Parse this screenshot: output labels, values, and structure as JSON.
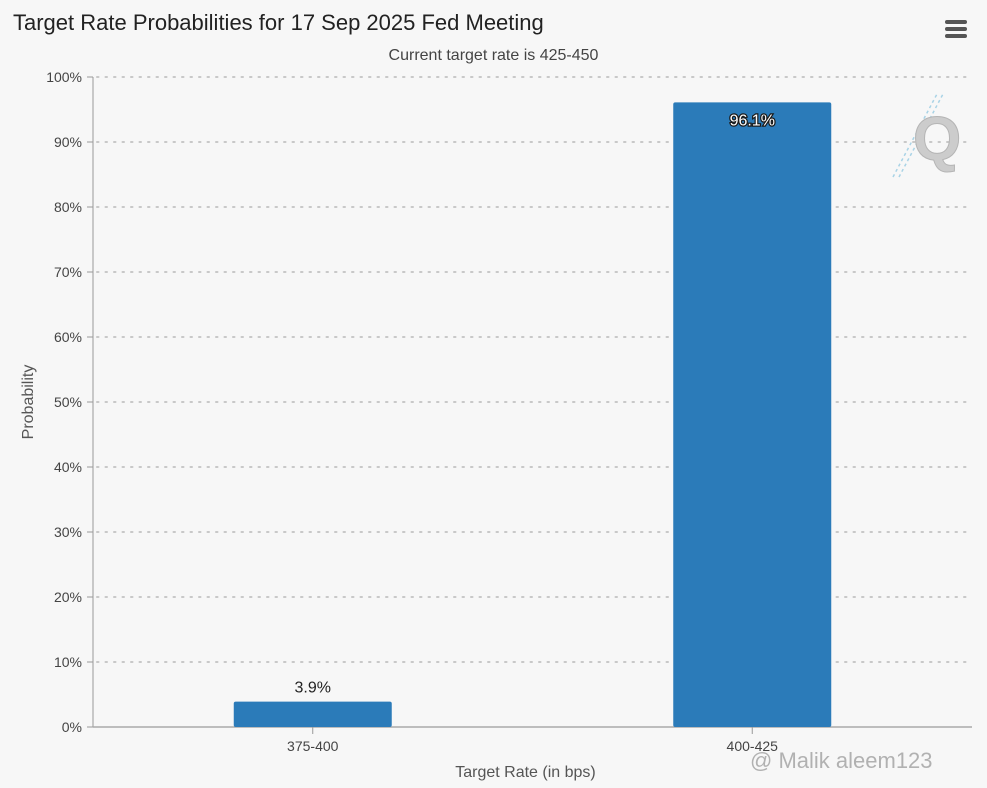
{
  "header": {
    "title": "Target Rate Probabilities for 17 Sep 2025 Fed Meeting",
    "subtitle": "Current target rate is 425-450",
    "menu_icon": "hamburger-menu-icon"
  },
  "watermark": {
    "logo_letter": "Q",
    "text": "@ Malik aleem123"
  },
  "chart_data": {
    "type": "bar",
    "title": "Target Rate Probabilities for 17 Sep 2025 Fed Meeting",
    "subtitle": "Current target rate is 425-450",
    "xlabel": "Target Rate (in bps)",
    "ylabel": "Probability",
    "categories": [
      "375-400",
      "400-425"
    ],
    "values": [
      3.9,
      96.1
    ],
    "data_labels": [
      "3.9%",
      "96.1%"
    ],
    "ylim": [
      0,
      100
    ],
    "yticks": [
      0,
      10,
      20,
      30,
      40,
      50,
      60,
      70,
      80,
      90,
      100
    ],
    "ytick_labels": [
      "0%",
      "10%",
      "20%",
      "30%",
      "40%",
      "50%",
      "60%",
      "70%",
      "80%",
      "90%",
      "100%"
    ],
    "grid": true,
    "legend": "none",
    "bar_color": "#2b7bb9"
  }
}
